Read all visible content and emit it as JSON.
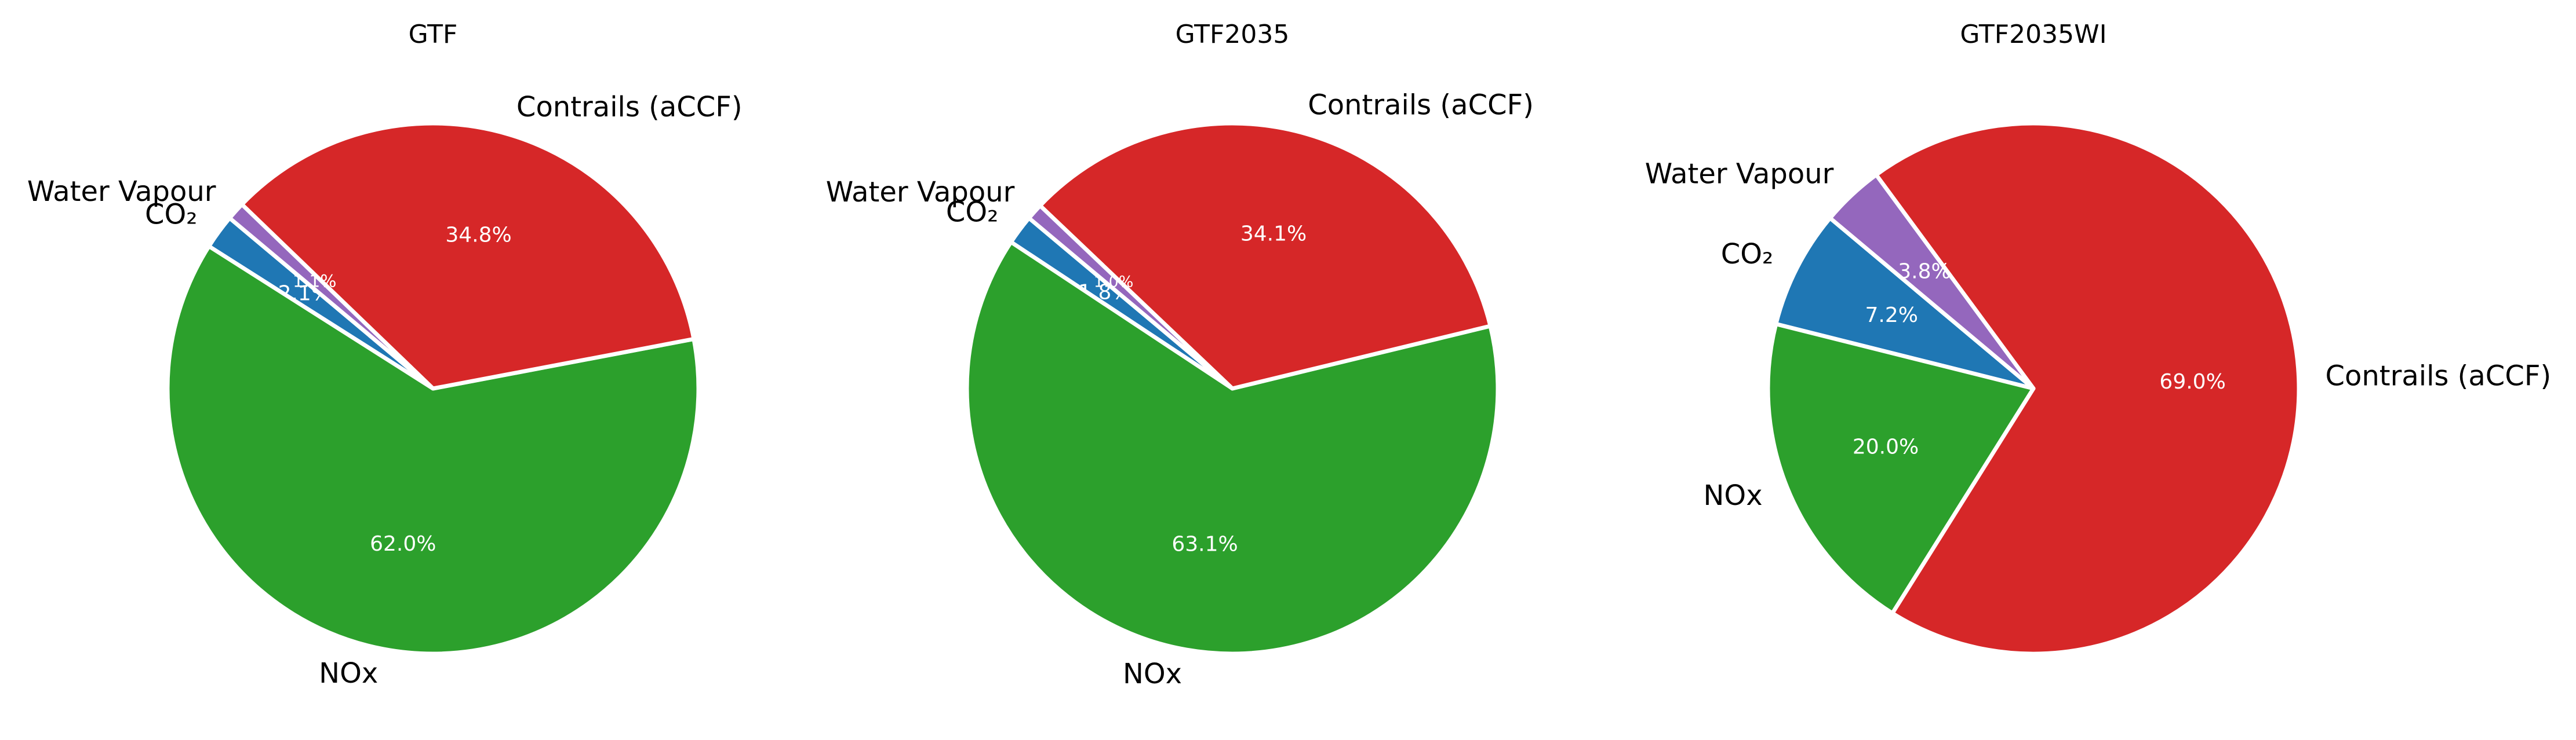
{
  "chart_data": [
    {
      "type": "pie",
      "title": "GTF",
      "start_angle_deg": 140,
      "slices": [
        {
          "label": "CO₂",
          "percent_label": "2.1%",
          "value": 2.1,
          "color": "#1f77b4"
        },
        {
          "label": "NOx",
          "percent_label": "62.0%",
          "value": 62.0,
          "color": "#2ca02c"
        },
        {
          "label": "Contrails (aCCF)",
          "percent_label": "34.8%",
          "value": 34.8,
          "color": "#d62728"
        },
        {
          "label": "Water Vapour",
          "percent_label": "1.1%",
          "value": 1.1,
          "color": "#9467bd"
        }
      ]
    },
    {
      "type": "pie",
      "title": "GTF2035",
      "start_angle_deg": 140,
      "slices": [
        {
          "label": "CO₂",
          "percent_label": "1.8%",
          "value": 1.8,
          "color": "#1f77b4"
        },
        {
          "label": "NOx",
          "percent_label": "63.1%",
          "value": 63.1,
          "color": "#2ca02c"
        },
        {
          "label": "Contrails (aCCF)",
          "percent_label": "34.1%",
          "value": 34.1,
          "color": "#d62728"
        },
        {
          "label": "Water Vapour",
          "percent_label": "1.0%",
          "value": 1.0,
          "color": "#9467bd"
        }
      ]
    },
    {
      "type": "pie",
      "title": "GTF2035WI",
      "start_angle_deg": 140,
      "slices": [
        {
          "label": "CO₂",
          "percent_label": "7.2%",
          "value": 7.2,
          "color": "#1f77b4"
        },
        {
          "label": "NOx",
          "percent_label": "20.0%",
          "value": 20.0,
          "color": "#2ca02c"
        },
        {
          "label": "Contrails (aCCF)",
          "percent_label": "69.0%",
          "value": 69.0,
          "color": "#d62728"
        },
        {
          "label": "Water Vapour",
          "percent_label": "3.8%",
          "value": 3.8,
          "color": "#9467bd"
        }
      ]
    }
  ]
}
